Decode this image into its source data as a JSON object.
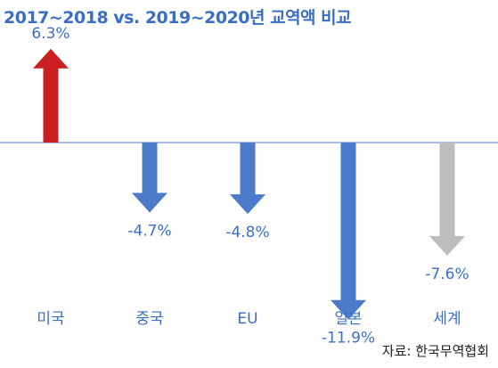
{
  "chart_data": {
    "type": "bar",
    "title": "2017~2018 vs. 2019~2020년 교역액 비교",
    "categories": [
      "미국",
      "중국",
      "EU",
      "일본",
      "세계"
    ],
    "values": [
      6.3,
      -4.7,
      -4.8,
      -11.9,
      -7.6
    ],
    "value_labels": [
      "6.3%",
      "-4.7%",
      "-4.8%",
      "-11.9%",
      "-7.6%"
    ],
    "unit": "%",
    "xlabel": "",
    "ylabel": "",
    "grid": false,
    "legend": "none",
    "colors": {
      "positive": "#cc1f1f",
      "negative": "#4b7bc9",
      "world": "#bdbdbd",
      "text": "#3a6fc4",
      "axis": "#8aa8d8"
    }
  },
  "source": "자료: 한국무역협회"
}
